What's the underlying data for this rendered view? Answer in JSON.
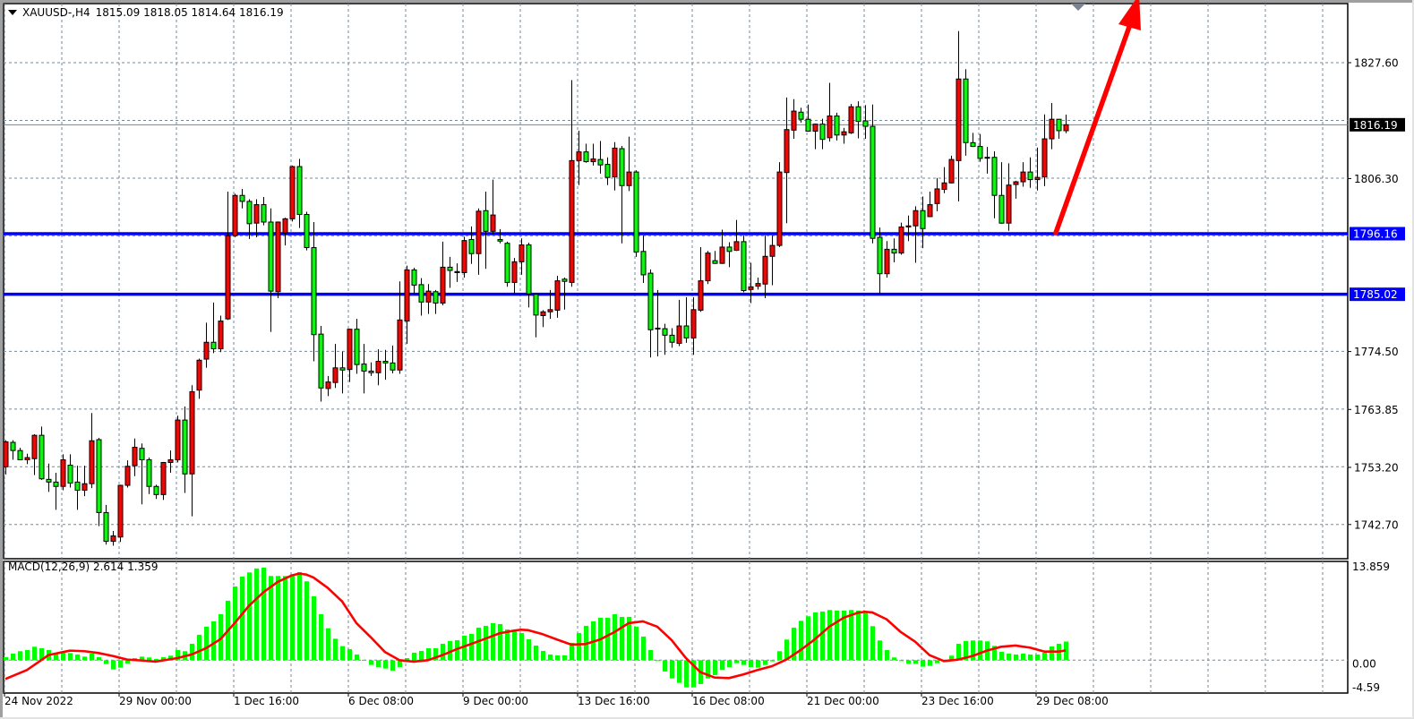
{
  "header": {
    "symbol": "XAUUSD-,H4",
    "ohlc": "1815.09 1818.05 1814.64 1816.19"
  },
  "macd": {
    "label": "MACD(12,26,9) 2.614 1.359",
    "axis_labels": [
      "13.859",
      "0.00",
      "-4.59"
    ],
    "histogram_color": "#00ff00",
    "signal_color": "#ff0000",
    "histogram": [
      0.42,
      0.92,
      1.26,
      1.42,
      1.88,
      1.67,
      1.42,
      0.84,
      1.13,
      1.0,
      0.8,
      0.5,
      0.92,
      0.42,
      -0.54,
      -1.3,
      -1.05,
      -0.46,
      0.29,
      0.5,
      0.38,
      0.17,
      0.42,
      0.63,
      1.42,
      1.26,
      2.3,
      3.56,
      4.69,
      5.44,
      6.44,
      8.33,
      10.33,
      11.72,
      12.3,
      12.85,
      12.97,
      11.8,
      11.8,
      11.8,
      12.0,
      12.34,
      11.05,
      8.95,
      6.44,
      4.48,
      3.01,
      1.97,
      1.55,
      0.8,
      0.05,
      -0.67,
      -0.96,
      -1.17,
      -1.46,
      -0.96,
      0.29,
      1.05,
      1.3,
      1.67,
      1.67,
      2.3,
      2.68,
      2.8,
      3.43,
      3.68,
      4.56,
      4.81,
      5.19,
      5.06,
      4.31,
      4.06,
      3.81,
      2.93,
      2.05,
      1.3,
      0.8,
      0.67,
      0.67,
      2.43,
      3.81,
      4.81,
      5.44,
      5.94,
      5.94,
      6.44,
      6.07,
      6.07,
      4.69,
      3.31,
      1.42,
      -0.13,
      -1.59,
      -2.55,
      -3.18,
      -3.81,
      -3.81,
      -3.35,
      -2.55,
      -2.09,
      -1.38,
      -0.96,
      -0.42,
      -0.67,
      -0.96,
      -1.05,
      -0.67,
      -0.17,
      1.26,
      2.89,
      4.56,
      5.52,
      6.15,
      6.69,
      6.82,
      7.03,
      6.95,
      6.95,
      7.03,
      6.95,
      6.78,
      4.77,
      2.76,
      1.42,
      0.38,
      -0.13,
      -0.5,
      -0.5,
      -0.92,
      -0.8,
      -0.42,
      0,
      0.63,
      2.3,
      2.68,
      2.76,
      2.76,
      2.64,
      2.01,
      1.17,
      0.92,
      0.8,
      0.92,
      0.8,
      0.8,
      1.05,
      1.92,
      2.3,
      2.614
    ],
    "signal_points": [
      [
        0,
        -2.64
      ],
      [
        3,
        -1.38
      ],
      [
        5,
        0
      ],
      [
        6,
        0.71
      ],
      [
        8,
        1.13
      ],
      [
        9,
        1.34
      ],
      [
        11,
        1.26
      ],
      [
        13,
        1.0
      ],
      [
        15,
        0.59
      ],
      [
        17,
        0.08
      ],
      [
        19,
        -0.04
      ],
      [
        21,
        -0.2
      ],
      [
        24,
        0.29
      ],
      [
        26,
        0.8
      ],
      [
        28,
        1.67
      ],
      [
        30,
        2.93
      ],
      [
        32,
        5.19
      ],
      [
        34,
        7.62
      ],
      [
        36,
        9.5
      ],
      [
        38,
        10.96
      ],
      [
        40,
        11.88
      ],
      [
        41,
        12.13
      ],
      [
        42,
        12.0
      ],
      [
        43,
        11.59
      ],
      [
        45,
        10.13
      ],
      [
        47,
        8.24
      ],
      [
        49,
        5.19
      ],
      [
        51,
        3.22
      ],
      [
        53,
        1.13
      ],
      [
        55,
        0
      ],
      [
        57,
        -0.2
      ],
      [
        59,
        0
      ],
      [
        61,
        0.71
      ],
      [
        63,
        1.55
      ],
      [
        65,
        2.26
      ],
      [
        67,
        3.01
      ],
      [
        69,
        3.77
      ],
      [
        71,
        4.14
      ],
      [
        72,
        4.27
      ],
      [
        73,
        4.2
      ],
      [
        75,
        3.64
      ],
      [
        77,
        2.89
      ],
      [
        79,
        2.18
      ],
      [
        81,
        2.26
      ],
      [
        83,
        2.89
      ],
      [
        85,
        3.93
      ],
      [
        87,
        5.19
      ],
      [
        89,
        5.44
      ],
      [
        91,
        4.69
      ],
      [
        93,
        2.8
      ],
      [
        95,
        0.29
      ],
      [
        97,
        -1.67
      ],
      [
        99,
        -2.43
      ],
      [
        101,
        -2.51
      ],
      [
        103,
        -2.0
      ],
      [
        105,
        -1.38
      ],
      [
        107,
        -0.84
      ],
      [
        109,
        0.08
      ],
      [
        111,
        1.42
      ],
      [
        113,
        2.93
      ],
      [
        115,
        4.69
      ],
      [
        117,
        5.94
      ],
      [
        119,
        6.65
      ],
      [
        120,
        6.78
      ],
      [
        121,
        6.7
      ],
      [
        123,
        5.73
      ],
      [
        125,
        3.93
      ],
      [
        127,
        2.59
      ],
      [
        129,
        0.71
      ],
      [
        131,
        -0.13
      ],
      [
        133,
        0.08
      ],
      [
        135,
        0.59
      ],
      [
        137,
        1.34
      ],
      [
        139,
        1.88
      ],
      [
        141,
        2.05
      ],
      [
        143,
        1.76
      ],
      [
        145,
        1.21
      ],
      [
        147,
        1.21
      ],
      [
        148,
        1.359
      ]
    ]
  },
  "price_axis": {
    "labels": [
      "1827.60",
      "1806.30",
      "1774.50",
      "1763.85",
      "1753.20",
      "1742.70"
    ],
    "range": [
      1742.7,
      1827.6
    ]
  },
  "price_tags": [
    {
      "value": "1816.19",
      "color": "#000000"
    },
    {
      "value": "1796.16",
      "color": "#0000ff"
    },
    {
      "value": "1785.02",
      "color": "#0000ff"
    }
  ],
  "horizontal_levels": [
    {
      "price": 1796.16,
      "color": "#0000ff"
    },
    {
      "price": 1785.02,
      "color": "#0000ff"
    }
  ],
  "current_price": 1816.19,
  "time_labels": [
    "24 Nov 2022",
    "29 Nov 00:00",
    "1 Dec 16:00",
    "6 Dec 08:00",
    "9 Dec 00:00",
    "13 Dec 16:00",
    "16 Dec 08:00",
    "21 Dec 00:00",
    "23 Dec 16:00",
    "29 Dec 08:00"
  ],
  "colors": {
    "bull_candle": "#ff0000",
    "bear_candle": "#00ff00",
    "grid": "#778899",
    "arrow": "#ff0000"
  },
  "arrow": {
    "direction": "up"
  },
  "candles": [
    [
      1753.3,
      1758.2,
      1751.9,
      1757.9
    ],
    [
      1757.8,
      1758.2,
      1754.6,
      1756.3
    ],
    [
      1756.3,
      1756.8,
      1754.6,
      1754.6
    ],
    [
      1754.6,
      1755.7,
      1753.8,
      1755.0
    ],
    [
      1754.8,
      1759.3,
      1751.8,
      1759.1
    ],
    [
      1759.1,
      1760.7,
      1750.9,
      1751.1
    ],
    [
      1751.0,
      1753.9,
      1748.7,
      1750.5
    ],
    [
      1750.5,
      1752.2,
      1745.4,
      1749.7
    ],
    [
      1749.7,
      1755.6,
      1749.0,
      1754.6
    ],
    [
      1753.6,
      1755.6,
      1749.5,
      1750.3
    ],
    [
      1750.5,
      1753.5,
      1745.4,
      1749.0
    ],
    [
      1749.0,
      1753.5,
      1747.9,
      1750.2
    ],
    [
      1750.2,
      1763.2,
      1749.4,
      1758.1
    ],
    [
      1758.3,
      1758.6,
      1742.4,
      1744.9
    ],
    [
      1744.9,
      1746.3,
      1739.0,
      1739.6
    ],
    [
      1739.6,
      1741.5,
      1738.8,
      1740.6
    ],
    [
      1740.4,
      1750.0,
      1739.5,
      1749.9
    ],
    [
      1749.9,
      1754.5,
      1749.5,
      1753.4
    ],
    [
      1753.5,
      1758.5,
      1751.6,
      1756.9
    ],
    [
      1756.7,
      1757.6,
      1746.4,
      1754.6
    ],
    [
      1754.6,
      1755.0,
      1748.3,
      1749.7
    ],
    [
      1749.7,
      1750.0,
      1747.4,
      1748.2
    ],
    [
      1748.2,
      1754.2,
      1747.2,
      1754.1
    ],
    [
      1754.1,
      1756.3,
      1752.2,
      1754.6
    ],
    [
      1754.6,
      1762.7,
      1754.1,
      1761.9
    ],
    [
      1761.9,
      1764.4,
      1748.5,
      1752.0
    ],
    [
      1752.0,
      1768.3,
      1744.2,
      1767.1
    ],
    [
      1767.4,
      1773.2,
      1765.8,
      1772.9
    ],
    [
      1773.1,
      1779.8,
      1771.5,
      1776.2
    ],
    [
      1776.2,
      1783.5,
      1774.2,
      1775.0
    ],
    [
      1775.0,
      1781.1,
      1774.4,
      1780.1
    ],
    [
      1780.5,
      1803.9,
      1780.3,
      1795.8
    ],
    [
      1795.8,
      1803.5,
      1795.5,
      1803.2
    ],
    [
      1803.2,
      1804.4,
      1800.8,
      1802.1
    ],
    [
      1802.1,
      1802.5,
      1795.2,
      1798.0
    ],
    [
      1798.1,
      1802.5,
      1795.5,
      1801.5
    ],
    [
      1801.5,
      1802.9,
      1797.7,
      1798.3
    ],
    [
      1798.3,
      1800.8,
      1778.1,
      1785.6
    ],
    [
      1785.5,
      1798.4,
      1784.3,
      1798.3
    ],
    [
      1796.3,
      1799.1,
      1794.0,
      1798.9
    ],
    [
      1798.9,
      1808.7,
      1798.4,
      1808.5
    ],
    [
      1808.5,
      1809.9,
      1797.2,
      1799.7
    ],
    [
      1799.7,
      1800.2,
      1793.1,
      1793.6
    ],
    [
      1793.6,
      1798.3,
      1772.7,
      1777.6
    ],
    [
      1777.7,
      1779.2,
      1765.3,
      1767.8
    ],
    [
      1767.7,
      1770.0,
      1766.3,
      1768.9
    ],
    [
      1768.8,
      1775.9,
      1767.8,
      1771.5
    ],
    [
      1771.5,
      1774.5,
      1766.8,
      1771.1
    ],
    [
      1771.2,
      1778.7,
      1768.9,
      1778.6
    ],
    [
      1778.6,
      1780.5,
      1770.4,
      1772.1
    ],
    [
      1772.2,
      1775.9,
      1766.8,
      1770.9
    ],
    [
      1770.9,
      1772.5,
      1770.0,
      1770.6
    ],
    [
      1770.6,
      1774.9,
      1768.3,
      1772.7
    ],
    [
      1772.7,
      1774.8,
      1769.3,
      1772.4
    ],
    [
      1772.4,
      1775.6,
      1770.5,
      1771.1
    ],
    [
      1771.1,
      1787.4,
      1770.4,
      1780.3
    ],
    [
      1780.1,
      1790.3,
      1775.9,
      1789.5
    ],
    [
      1789.5,
      1789.9,
      1785.1,
      1786.7
    ],
    [
      1786.8,
      1788.0,
      1781.1,
      1783.6
    ],
    [
      1783.6,
      1786.9,
      1781.4,
      1785.6
    ],
    [
      1785.5,
      1785.8,
      1781.4,
      1783.4
    ],
    [
      1783.4,
      1794.7,
      1783.0,
      1790.0
    ],
    [
      1790.0,
      1791.9,
      1786.2,
      1789.4
    ],
    [
      1789.0,
      1790.7,
      1787.3,
      1789.2
    ],
    [
      1789.0,
      1795.6,
      1788.1,
      1794.9
    ],
    [
      1795.1,
      1797.5,
      1790.6,
      1792.5
    ],
    [
      1792.5,
      1800.8,
      1788.6,
      1800.3
    ],
    [
      1800.4,
      1803.9,
      1789.7,
      1796.6
    ],
    [
      1796.6,
      1806.1,
      1796.0,
      1799.6
    ],
    [
      1795.1,
      1797.0,
      1794.4,
      1794.8
    ],
    [
      1794.4,
      1794.7,
      1786.4,
      1787.2
    ],
    [
      1787.2,
      1791.7,
      1785.1,
      1791.0
    ],
    [
      1791.0,
      1795.3,
      1788.6,
      1794.1
    ],
    [
      1794.1,
      1794.5,
      1782.6,
      1785.1
    ],
    [
      1785.0,
      1785.0,
      1777.1,
      1781.2
    ],
    [
      1781.1,
      1782.1,
      1779.0,
      1781.8
    ],
    [
      1781.8,
      1785.8,
      1780.5,
      1782.2
    ],
    [
      1782.1,
      1788.4,
      1780.7,
      1787.5
    ],
    [
      1787.8,
      1788.1,
      1782.2,
      1787.4
    ],
    [
      1787.2,
      1824.4,
      1786.4,
      1809.6
    ],
    [
      1809.6,
      1815.1,
      1805.1,
      1811.2
    ],
    [
      1811.2,
      1812.7,
      1809.2,
      1809.4
    ],
    [
      1809.4,
      1812.7,
      1808.7,
      1809.9
    ],
    [
      1809.8,
      1813.2,
      1807.2,
      1808.8
    ],
    [
      1808.9,
      1810.2,
      1805.1,
      1806.5
    ],
    [
      1806.6,
      1813.0,
      1804.1,
      1811.9
    ],
    [
      1811.8,
      1812.3,
      1794.4,
      1805.0
    ],
    [
      1805.0,
      1814.0,
      1804.0,
      1807.5
    ],
    [
      1807.5,
      1807.8,
      1791.9,
      1792.8
    ],
    [
      1792.9,
      1795.8,
      1787.1,
      1788.6
    ],
    [
      1788.9,
      1789.6,
      1773.4,
      1778.5
    ],
    [
      1778.8,
      1785.8,
      1773.6,
      1778.7
    ],
    [
      1778.7,
      1779.6,
      1773.9,
      1777.5
    ],
    [
      1777.5,
      1778.8,
      1775.2,
      1776.2
    ],
    [
      1776.0,
      1784.0,
      1775.5,
      1779.2
    ],
    [
      1779.2,
      1784.5,
      1776.1,
      1777.0
    ],
    [
      1777.0,
      1784.5,
      1773.9,
      1782.2
    ],
    [
      1782.1,
      1793.7,
      1781.8,
      1787.5
    ],
    [
      1787.5,
      1793.0,
      1786.9,
      1792.6
    ],
    [
      1791.2,
      1793.0,
      1790.6,
      1790.7
    ],
    [
      1790.7,
      1796.9,
      1790.6,
      1793.7
    ],
    [
      1793.7,
      1794.6,
      1790.0,
      1792.9
    ],
    [
      1793.1,
      1798.7,
      1793.0,
      1794.7
    ],
    [
      1794.7,
      1795.8,
      1785.4,
      1785.7
    ],
    [
      1785.9,
      1790.8,
      1783.4,
      1786.4
    ],
    [
      1786.5,
      1788.1,
      1785.9,
      1787.0
    ],
    [
      1786.9,
      1795.8,
      1784.3,
      1792.0
    ],
    [
      1792.0,
      1795.8,
      1786.7,
      1794.0
    ],
    [
      1794.0,
      1809.3,
      1793.7,
      1807.5
    ],
    [
      1807.4,
      1821.2,
      1798.1,
      1815.3
    ],
    [
      1815.2,
      1820.9,
      1813.6,
      1818.7
    ],
    [
      1818.5,
      1819.3,
      1816.6,
      1817.2
    ],
    [
      1817.2,
      1819.9,
      1814.9,
      1815.0
    ],
    [
      1815.0,
      1816.4,
      1811.7,
      1816.3
    ],
    [
      1816.3,
      1817.3,
      1811.7,
      1813.5
    ],
    [
      1813.8,
      1823.9,
      1813.1,
      1817.8
    ],
    [
      1817.8,
      1818.4,
      1813.3,
      1814.3
    ],
    [
      1814.3,
      1815.6,
      1812.7,
      1814.9
    ],
    [
      1814.7,
      1820.0,
      1814.5,
      1819.5
    ],
    [
      1819.5,
      1820.5,
      1813.7,
      1816.8
    ],
    [
      1816.9,
      1819.8,
      1813.6,
      1815.9
    ],
    [
      1815.9,
      1819.9,
      1794.4,
      1795.3
    ],
    [
      1795.5,
      1797.3,
      1785.1,
      1788.8
    ],
    [
      1788.8,
      1794.8,
      1788.1,
      1793.3
    ],
    [
      1793.3,
      1795.3,
      1790.9,
      1792.6
    ],
    [
      1792.6,
      1798.2,
      1792.3,
      1797.4
    ],
    [
      1797.4,
      1799.5,
      1794.8,
      1797.6
    ],
    [
      1797.6,
      1801.2,
      1790.8,
      1800.4
    ],
    [
      1800.4,
      1803.0,
      1793.5,
      1797.1
    ],
    [
      1799.3,
      1803.9,
      1799.2,
      1801.5
    ],
    [
      1801.7,
      1806.4,
      1800.3,
      1804.4
    ],
    [
      1804.3,
      1808.4,
      1803.6,
      1805.5
    ],
    [
      1805.5,
      1810.5,
      1805.4,
      1809.8
    ],
    [
      1809.6,
      1833.4,
      1802.1,
      1824.6
    ],
    [
      1824.6,
      1826.4,
      1810.5,
      1812.9
    ],
    [
      1812.9,
      1814.7,
      1812.1,
      1812.2
    ],
    [
      1812.2,
      1814.5,
      1809.4,
      1810.0
    ],
    [
      1810.2,
      1812.1,
      1807.2,
      1810.1
    ],
    [
      1810.2,
      1811.3,
      1799.0,
      1803.2
    ],
    [
      1803.2,
      1809.3,
      1798.0,
      1798.1
    ],
    [
      1798.1,
      1809.1,
      1796.7,
      1805.1
    ],
    [
      1805.2,
      1805.9,
      1802.6,
      1805.7
    ],
    [
      1805.7,
      1809.3,
      1804.8,
      1807.5
    ],
    [
      1807.5,
      1810.2,
      1804.6,
      1806.1
    ],
    [
      1806.1,
      1812.0,
      1804.1,
      1806.5
    ],
    [
      1806.6,
      1818.1,
      1804.9,
      1813.6
    ],
    [
      1813.6,
      1820.2,
      1811.7,
      1817.2
    ],
    [
      1817.2,
      1817.2,
      1813.6,
      1815.1
    ],
    [
      1815.09,
      1818.05,
      1814.64,
      1816.19
    ]
  ]
}
